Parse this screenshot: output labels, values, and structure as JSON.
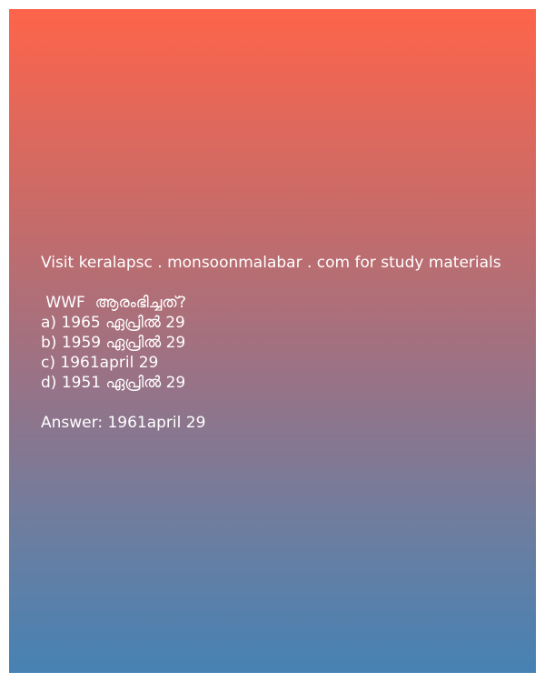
{
  "colors": {
    "gradient_top": "#fe644a",
    "gradient_bottom": "#4682b4",
    "text": "#ffffff"
  },
  "promo_text": "Visit keralapsc . monsoonmalabar . com for study materials",
  "question": " WWF  ആരംഭിച്ചത്?",
  "options": [
    "a) 1965 ഏപ്രിൽ 29",
    "b) 1959 ഏപ്രിൽ 29",
    "c) 1961april 29",
    "d) 1951 ഏപ്രിൽ 29"
  ],
  "answer": "Answer: 1961april 29"
}
